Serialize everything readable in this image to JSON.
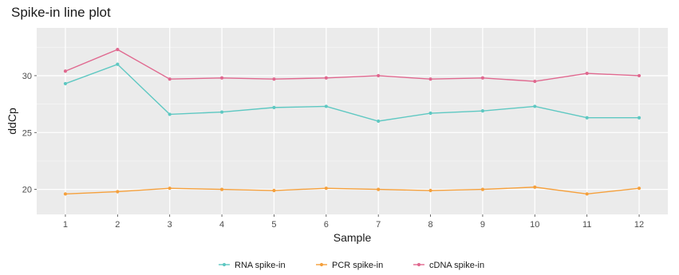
{
  "chart_data": {
    "type": "line",
    "title": "Spike-in line plot",
    "xlabel": "Sample",
    "ylabel": "ddCp",
    "x": [
      1,
      2,
      3,
      4,
      5,
      6,
      7,
      8,
      9,
      10,
      11,
      12
    ],
    "xlim": [
      0.45,
      12.55
    ],
    "ylim": [
      17.8,
      34.2
    ],
    "yticks": [
      20,
      25,
      30
    ],
    "grid": true,
    "legend_position": "bottom",
    "series": [
      {
        "name": "RNA spike-in",
        "color": "#5ec8c2",
        "values": [
          29.3,
          31.0,
          26.6,
          26.8,
          27.2,
          27.3,
          26.0,
          26.7,
          26.9,
          27.3,
          26.3,
          26.3
        ]
      },
      {
        "name": "PCR spike-in",
        "color": "#f5a03c",
        "values": [
          19.6,
          19.8,
          20.1,
          20.0,
          19.9,
          20.1,
          20.0,
          19.9,
          20.0,
          20.2,
          19.6,
          20.1
        ]
      },
      {
        "name": "cDNA spike-in",
        "color": "#e0688f",
        "values": [
          30.4,
          32.3,
          29.7,
          29.8,
          29.7,
          29.8,
          30.0,
          29.7,
          29.8,
          29.5,
          30.2,
          30.0
        ]
      }
    ]
  }
}
